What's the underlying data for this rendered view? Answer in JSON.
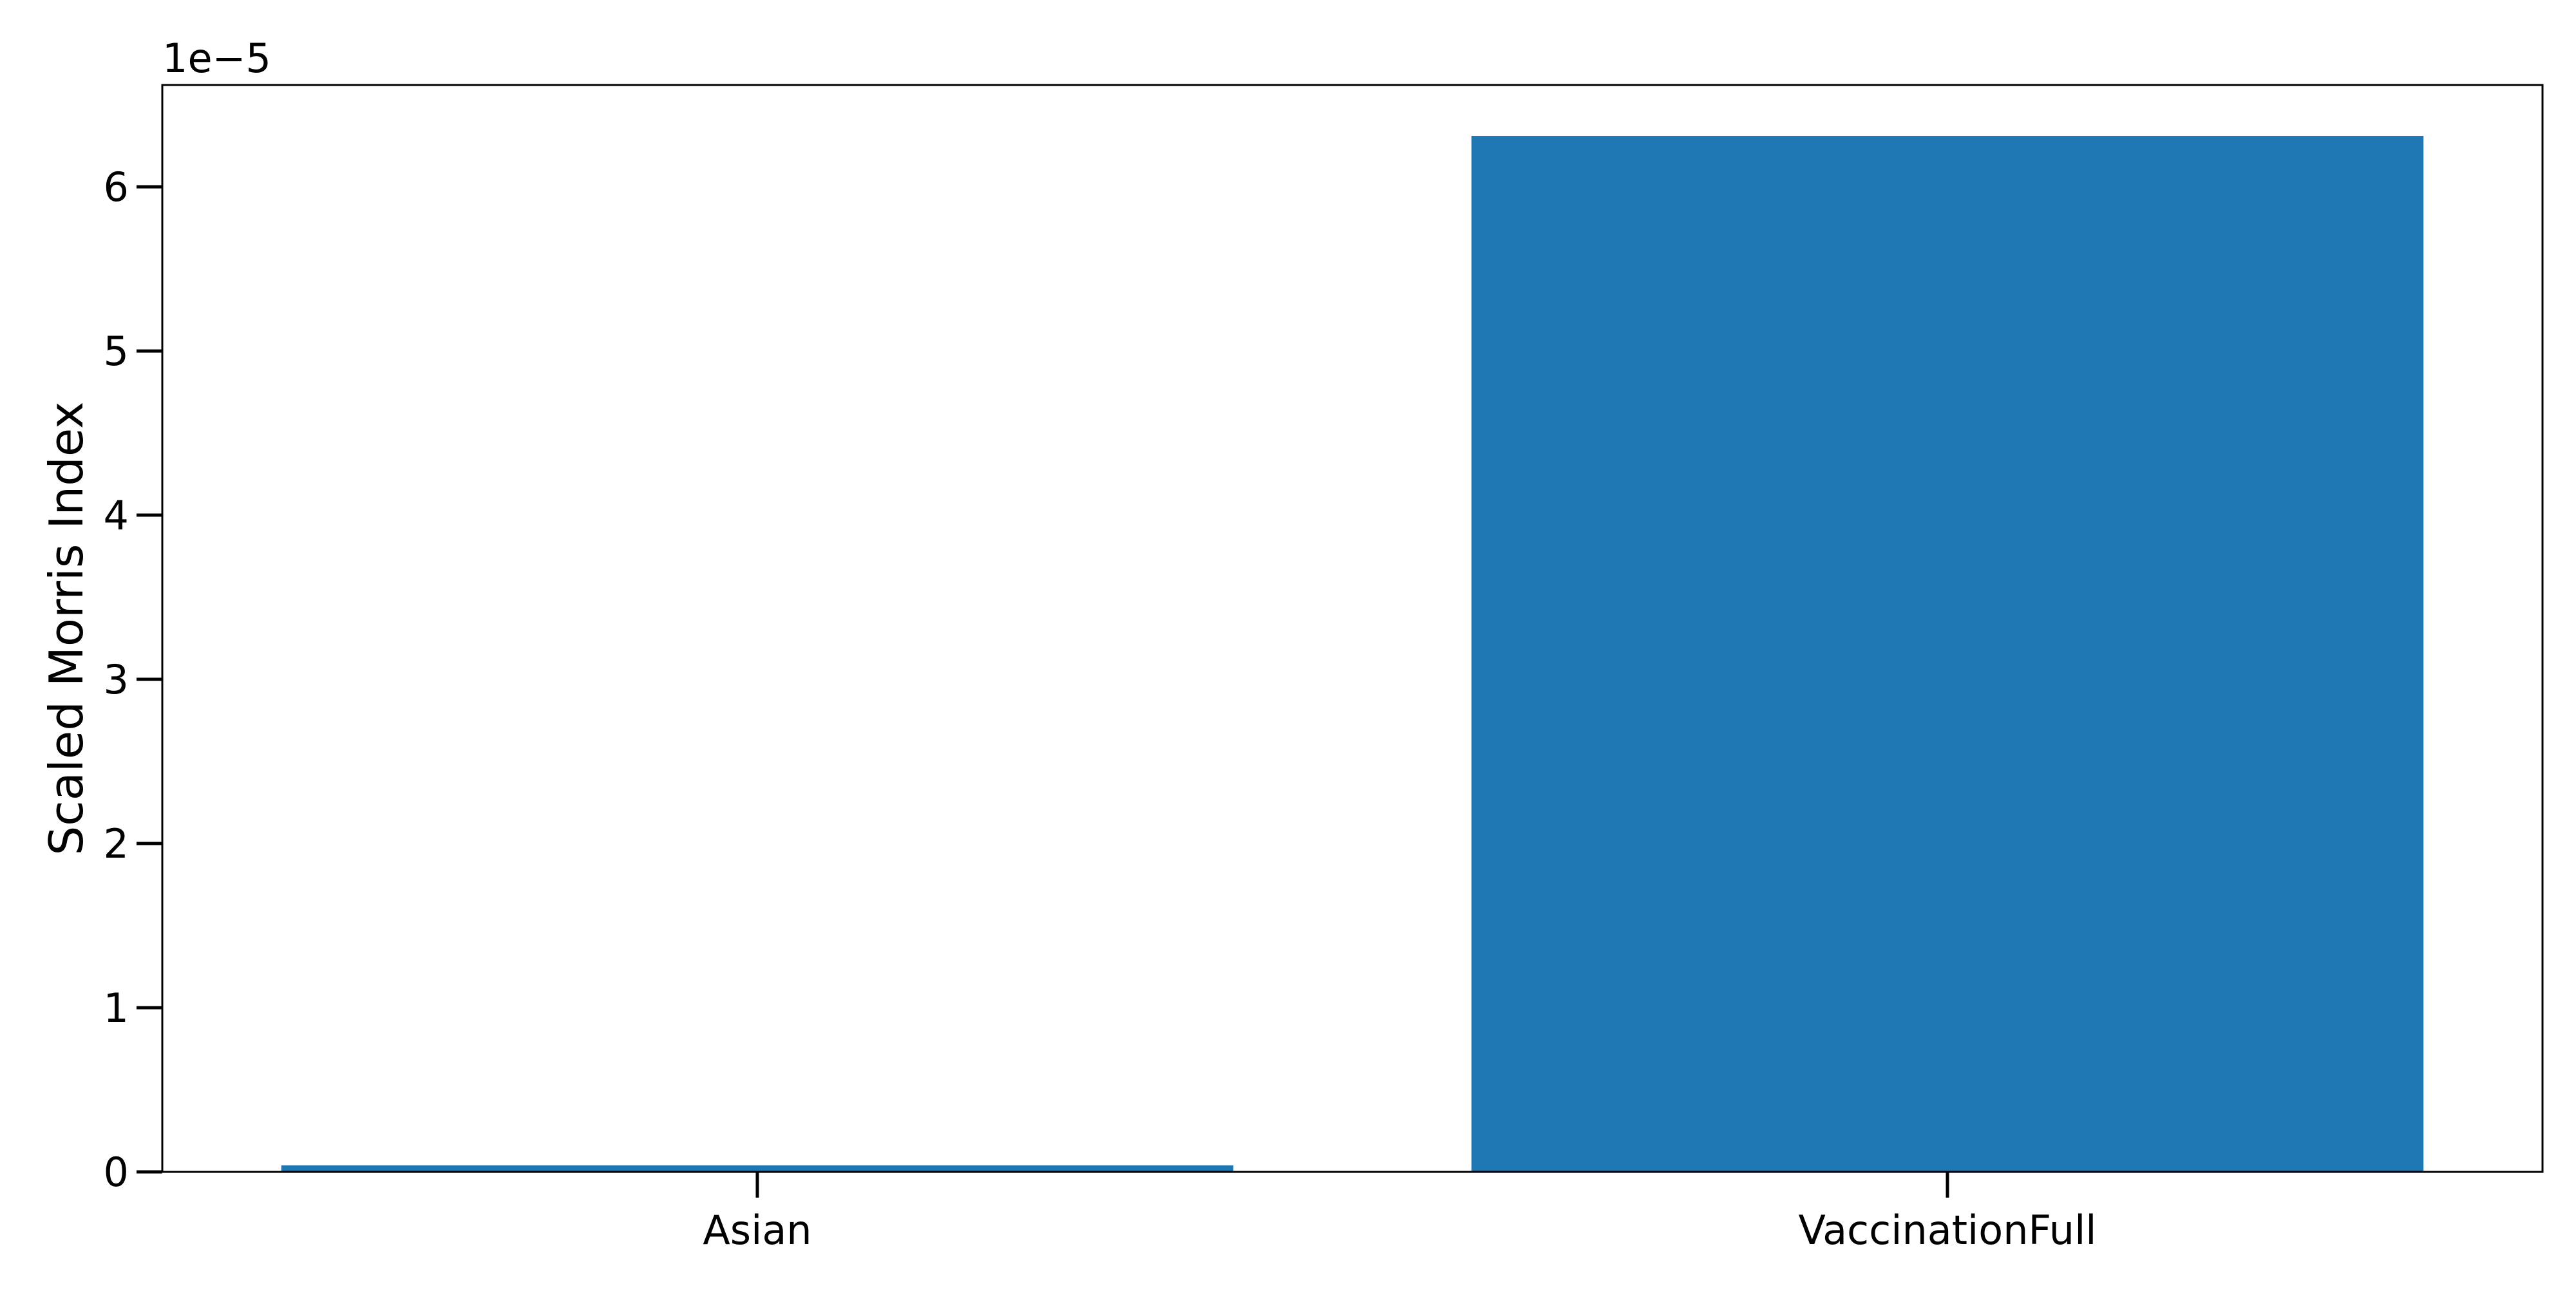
{
  "chart_data": {
    "type": "bar",
    "categories": [
      "Asian",
      "VaccinationFull"
    ],
    "values": [
      4e-07,
      6.31e-05
    ],
    "title": "",
    "xlabel": "",
    "ylabel": "Scaled Morris Index",
    "ylim": [
      0,
      6.62e-05
    ],
    "yticks": [
      0,
      1,
      2,
      3,
      4,
      5,
      6
    ],
    "y_scale_exponent_label": "1e−5",
    "bar_color": "#1f77b4",
    "grid": false,
    "legend": "none"
  }
}
